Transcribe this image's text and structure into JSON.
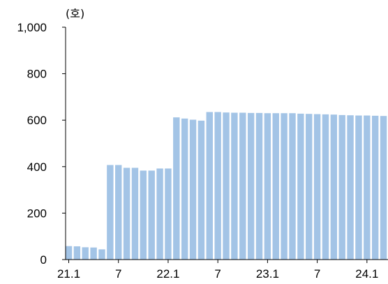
{
  "chart_data": {
    "type": "bar",
    "unit_label": "(호)",
    "ylim": [
      0,
      1000
    ],
    "y_ticks": [
      {
        "value": 0,
        "label": "0"
      },
      {
        "value": 200,
        "label": "200"
      },
      {
        "value": 400,
        "label": "400"
      },
      {
        "value": 600,
        "label": "600"
      },
      {
        "value": 800,
        "label": "800"
      },
      {
        "value": 1000,
        "label": "1,000"
      }
    ],
    "x_tick_labels": [
      {
        "index": 0,
        "label": "21.1"
      },
      {
        "index": 6,
        "label": "7"
      },
      {
        "index": 12,
        "label": "22.1"
      },
      {
        "index": 18,
        "label": "7"
      },
      {
        "index": 24,
        "label": "23.1"
      },
      {
        "index": 30,
        "label": "7"
      },
      {
        "index": 36,
        "label": "24.1"
      }
    ],
    "values": [
      58,
      57,
      53,
      52,
      44,
      407,
      407,
      395,
      395,
      383,
      383,
      392,
      392,
      612,
      607,
      602,
      598,
      635,
      635,
      633,
      632,
      632,
      631,
      631,
      630,
      630,
      630,
      630,
      628,
      627,
      626,
      625,
      624,
      622,
      621,
      620,
      620,
      619,
      618,
      618
    ],
    "bar_color": "#a3c4e6",
    "grid": false
  }
}
